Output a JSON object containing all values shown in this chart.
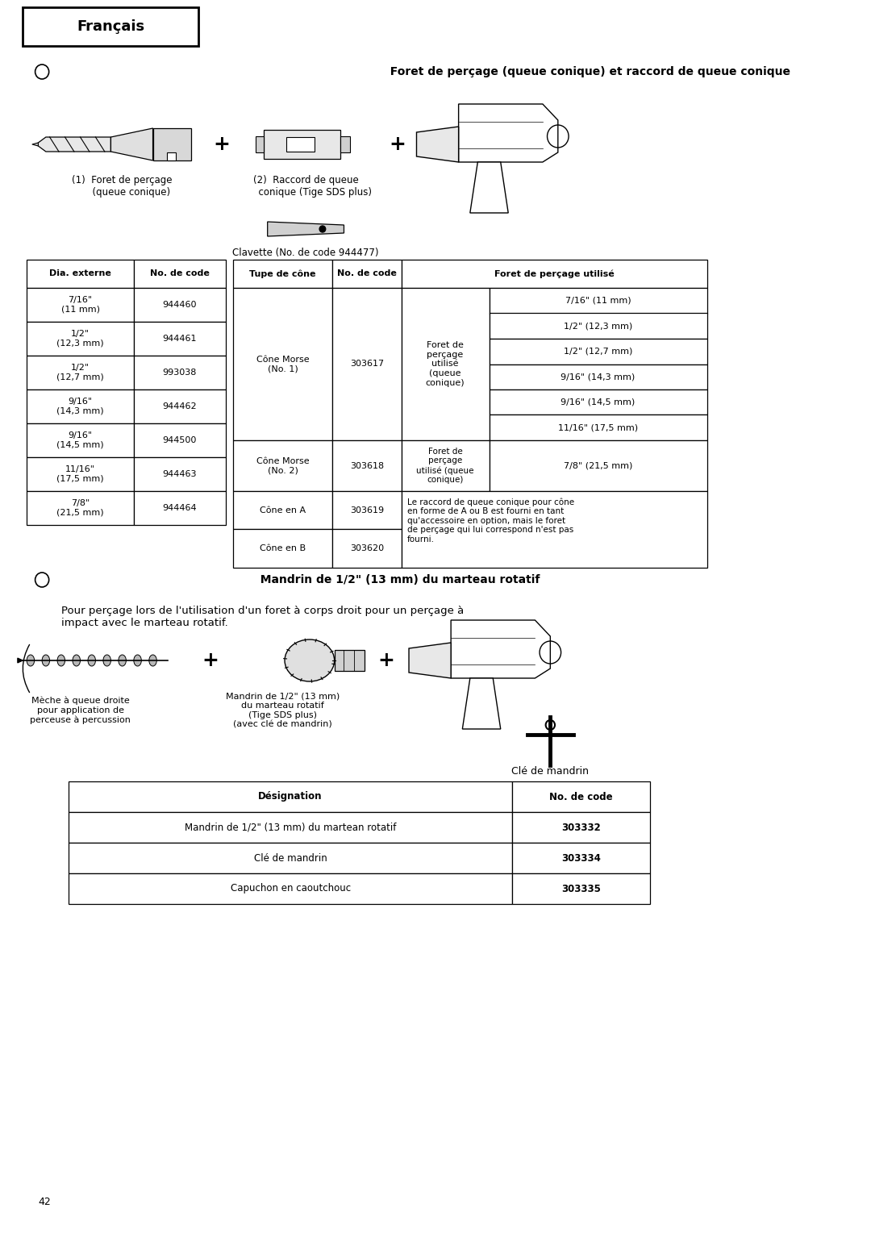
{
  "title_header": "Français",
  "section1_title": "○  Foret de perçage (queue conique) et raccord de queue conique",
  "label1": "(1)  Foret de perçage\n      (queue conique)",
  "label2": "(2)  Raccord de queue\n      conique (Tige SDS plus)",
  "label3": "Clavette (No. de code 944477)",
  "table1_headers": [
    "Dia. externe",
    "No. de code"
  ],
  "table1_rows": [
    [
      "7/16\"\n(11 mm)",
      "944460"
    ],
    [
      "1/2\"\n(12,3 mm)",
      "944461"
    ],
    [
      "1/2\"\n(12,7 mm)",
      "993038"
    ],
    [
      "9/16\"\n(14,3 mm)",
      "944462"
    ],
    [
      "9/16\"\n(14,5 mm)",
      "944500"
    ],
    [
      "11/16\"\n(17,5 mm)",
      "944463"
    ],
    [
      "7/8\"\n(21,5 mm)",
      "944464"
    ]
  ],
  "table2_headers": [
    "Tupe de cône",
    "No. de code",
    "Foret de perçage utilisé"
  ],
  "table2_rows": [
    [
      "Cône Morse\n(No. 1)",
      "303617",
      "Foret de\nperçage\nutilisé\n(queue\nconique)",
      "7/16\" (11 mm)\n1/2\" (12,3 mm)\n1/2\" (12,7 mm)\n9/16\" (14,3 mm)\n9/16\" (14,5 mm)\n11/16\" (17,5 mm)"
    ],
    [
      "Cône Morse\n(No. 2)",
      "303618",
      "Foret de\nperçage\nutilisé (queue\nconique)",
      "7/8\" (21,5 mm)"
    ],
    [
      "Cône en A",
      "303619",
      "Le raccord de queue conique pour cône\nen forme de A ou B est fourni en tant\nqu'accessoire en option, mais le foret\nde perçage qui lui correspond n'est pas\nfourni.",
      ""
    ],
    [
      "Cône en B",
      "303620",
      "",
      ""
    ]
  ],
  "section2_title": "○  Mandrin de 1/2\" (13 mm) du marteau rotatif",
  "section2_body": "    Pour perçage lors de l'utilisation d'un foret à corps droit pour un perçage à\n    impact avec le marteau rotatif.",
  "label4": "Mèche à queue droite\npour application de\nperceuse à percussion",
  "label5": "Mandrin de 1/2\" (13 mm)\ndu marteau rotatif\n(Tige SDS plus)\n(avec clé de mandrin)",
  "label6": "Clé de mandrin",
  "table3_headers": [
    "Désignation",
    "No. de code"
  ],
  "table3_rows": [
    [
      "Mandrin de 1/2\" (13 mm) du martean rotatif",
      "303332"
    ],
    [
      "Clé de mandrin",
      "303334"
    ],
    [
      "Capuchon en caoutchouc",
      "303335"
    ]
  ],
  "page_number": "42",
  "bg_color": "#ffffff",
  "text_color": "#000000",
  "border_color": "#000000"
}
